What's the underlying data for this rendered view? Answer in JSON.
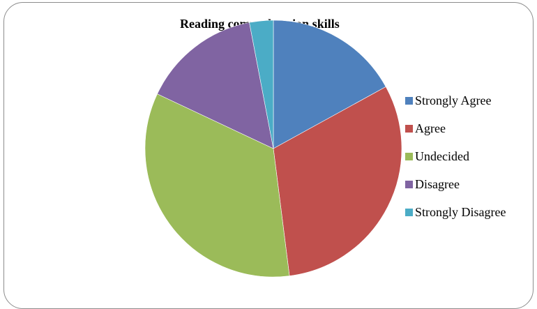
{
  "chart_data": {
    "type": "pie",
    "title": "Reading comprehension skills",
    "legend_position": "right",
    "categories": [
      "Strongly Agree",
      "Agree",
      "Undecided",
      "Disagree",
      "Strongly Disagree"
    ],
    "values": [
      17,
      31,
      34,
      15,
      3
    ],
    "colors": [
      "#4f81bd",
      "#c0504d",
      "#9bbb59",
      "#8064a2",
      "#4bacc6"
    ]
  }
}
